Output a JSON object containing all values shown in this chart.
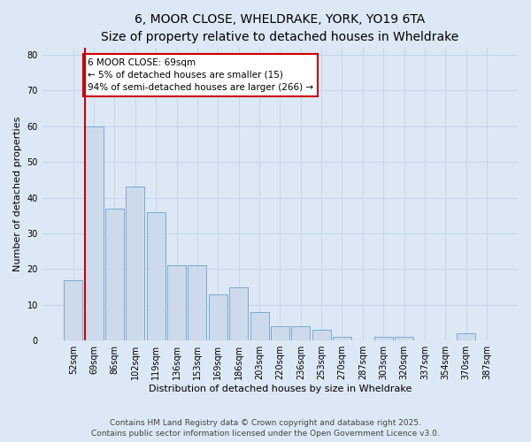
{
  "title_line1": "6, MOOR CLOSE, WHELDRAKE, YORK, YO19 6TA",
  "title_line2": "Size of property relative to detached houses in Wheldrake",
  "xlabel": "Distribution of detached houses by size in Wheldrake",
  "ylabel": "Number of detached properties",
  "categories": [
    "52sqm",
    "69sqm",
    "86sqm",
    "102sqm",
    "119sqm",
    "136sqm",
    "153sqm",
    "169sqm",
    "186sqm",
    "203sqm",
    "220sqm",
    "236sqm",
    "253sqm",
    "270sqm",
    "287sqm",
    "303sqm",
    "320sqm",
    "337sqm",
    "354sqm",
    "370sqm",
    "387sqm"
  ],
  "values": [
    17,
    60,
    37,
    43,
    36,
    21,
    21,
    13,
    15,
    8,
    4,
    4,
    3,
    1,
    0,
    1,
    1,
    0,
    0,
    2,
    0
  ],
  "bar_color": "#ccdaeb",
  "bar_edge_color": "#7aaace",
  "red_line_index": 1,
  "red_line_color": "#cc0000",
  "annotation_text": "6 MOOR CLOSE: 69sqm\n← 5% of detached houses are smaller (15)\n94% of semi-detached houses are larger (266) →",
  "annotation_box_edge": "#cc0000",
  "annotation_box_face": "#ffffff",
  "ylim": [
    0,
    82
  ],
  "yticks": [
    0,
    10,
    20,
    30,
    40,
    50,
    60,
    70,
    80
  ],
  "grid_color": "#c5d5e8",
  "background_color": "#dce8f5",
  "footer_line1": "Contains HM Land Registry data © Crown copyright and database right 2025.",
  "footer_line2": "Contains public sector information licensed under the Open Government Licence v3.0.",
  "title_fontsize": 10,
  "subtitle_fontsize": 9,
  "annotation_fontsize": 7.5,
  "footer_fontsize": 6.5,
  "tick_fontsize": 7,
  "label_fontsize": 8
}
